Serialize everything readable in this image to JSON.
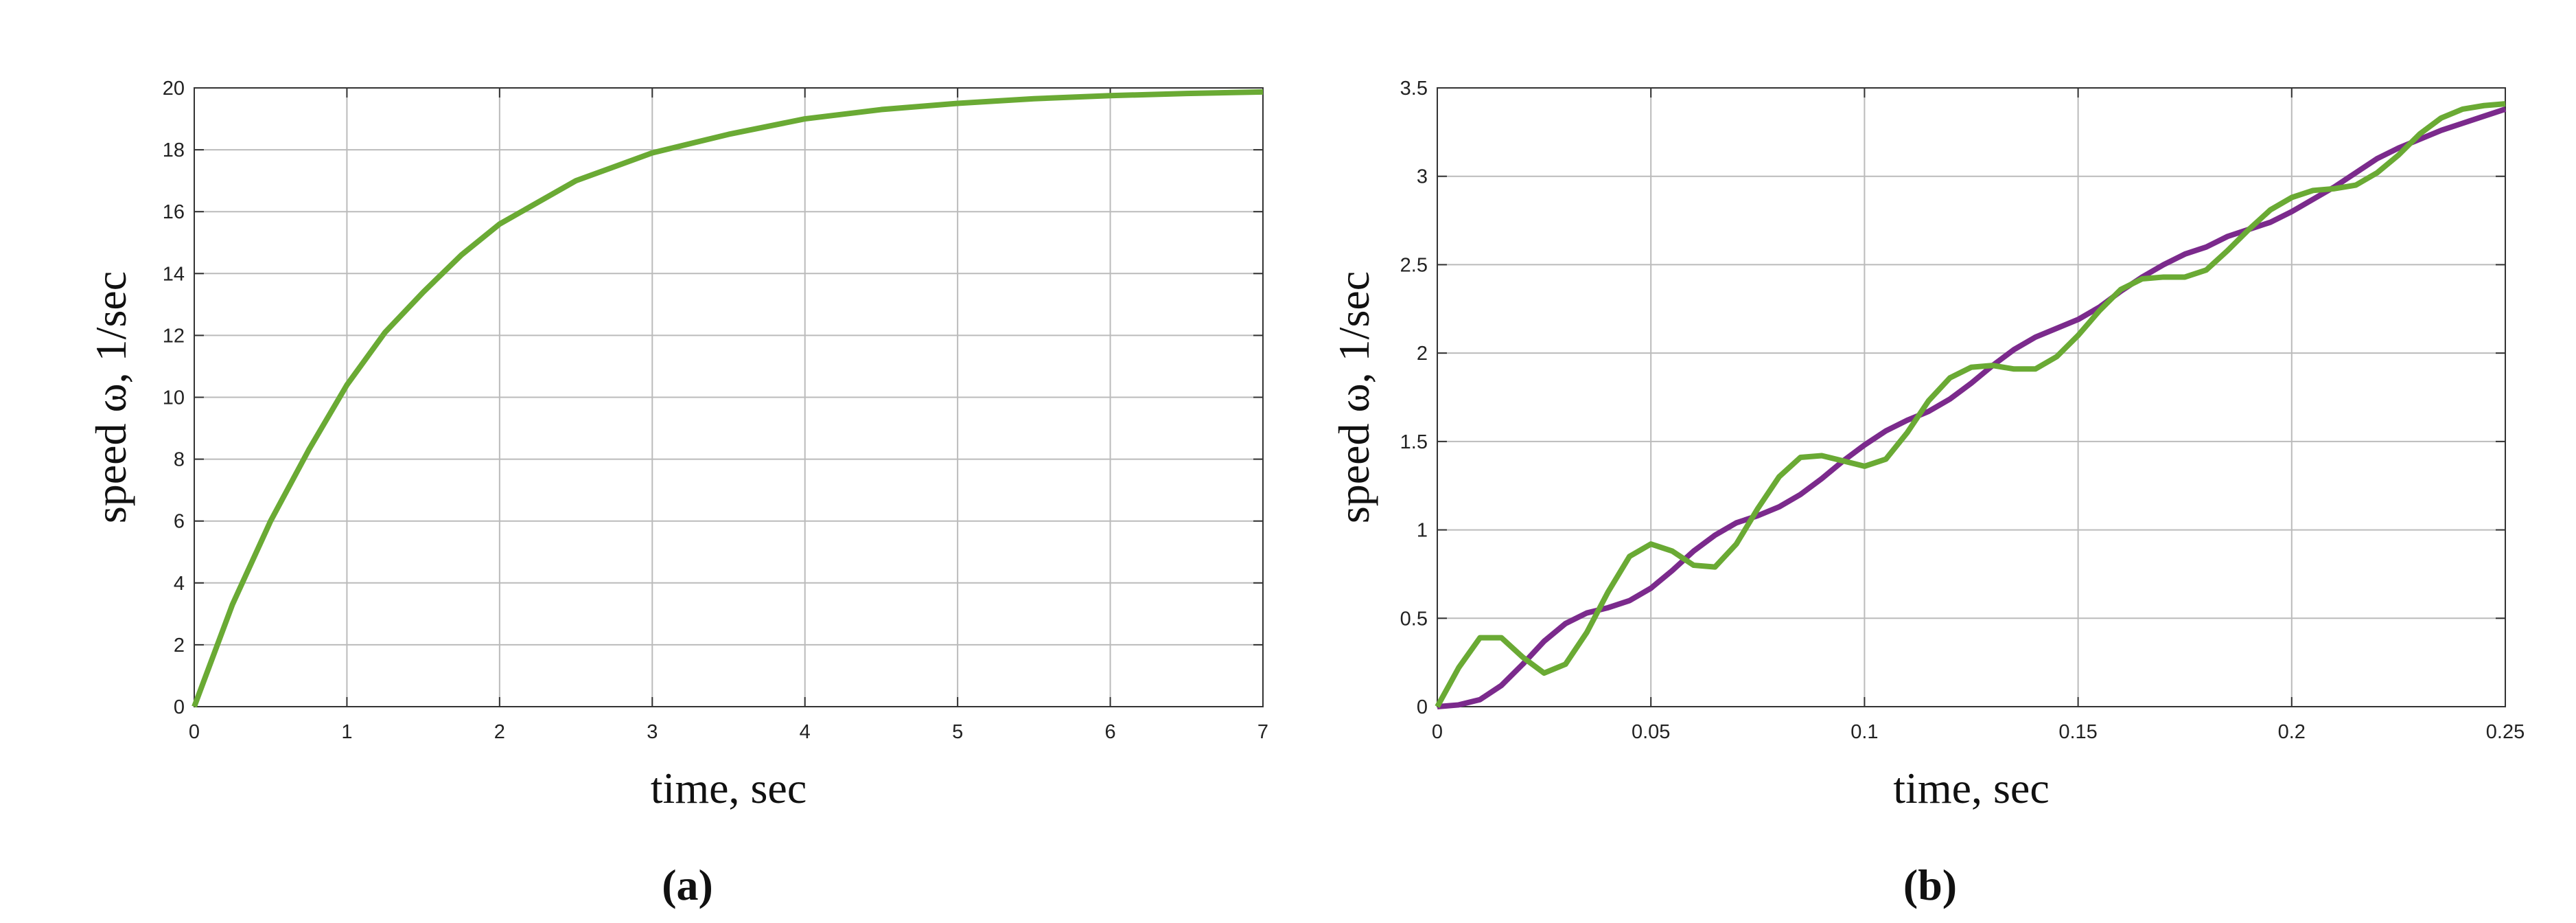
{
  "chart_data": [
    {
      "type": "line",
      "xlabel": "time, sec",
      "ylabel": "speed ω, 1/sec",
      "panel": "(a)",
      "x": [
        0,
        0.25,
        0.5,
        0.75,
        1,
        1.25,
        1.5,
        1.75,
        2,
        2.5,
        3,
        3.5,
        4,
        4.5,
        5,
        5.5,
        6,
        6.5,
        7
      ],
      "series": [
        {
          "color": "#6aaa34",
          "values": [
            0,
            3.3,
            6.0,
            8.3,
            10.4,
            12.1,
            13.4,
            14.6,
            15.6,
            17.0,
            17.9,
            18.5,
            19.0,
            19.3,
            19.5,
            19.65,
            19.75,
            19.82,
            19.87
          ]
        }
      ],
      "xlim": [
        0,
        7
      ],
      "ylim": [
        0,
        20
      ],
      "xticks": [
        0,
        1,
        2,
        3,
        4,
        5,
        6,
        7
      ],
      "yticks": [
        0,
        2,
        4,
        6,
        8,
        10,
        12,
        14,
        16,
        18,
        20
      ],
      "grid": true
    },
    {
      "type": "line",
      "xlabel": "time, sec",
      "ylabel": "speed ω, 1/sec",
      "panel": "(b)",
      "x": [
        0,
        0.005,
        0.01,
        0.015,
        0.02,
        0.025,
        0.03,
        0.035,
        0.04,
        0.045,
        0.05,
        0.055,
        0.06,
        0.065,
        0.07,
        0.075,
        0.08,
        0.085,
        0.09,
        0.095,
        0.1,
        0.105,
        0.11,
        0.115,
        0.12,
        0.125,
        0.13,
        0.135,
        0.14,
        0.145,
        0.15,
        0.155,
        0.16,
        0.165,
        0.17,
        0.175,
        0.18,
        0.185,
        0.19,
        0.195,
        0.2,
        0.205,
        0.21,
        0.215,
        0.22,
        0.225,
        0.23,
        0.235,
        0.24,
        0.245,
        0.25
      ],
      "series": [
        {
          "color": "#7b2a8c",
          "values": [
            0,
            0.01,
            0.04,
            0.12,
            0.24,
            0.37,
            0.47,
            0.53,
            0.56,
            0.6,
            0.67,
            0.77,
            0.88,
            0.97,
            1.04,
            1.08,
            1.13,
            1.2,
            1.29,
            1.39,
            1.48,
            1.56,
            1.62,
            1.67,
            1.74,
            1.83,
            1.93,
            2.02,
            2.09,
            2.14,
            2.19,
            2.26,
            2.35,
            2.43,
            2.5,
            2.56,
            2.6,
            2.66,
            2.7,
            2.74,
            2.8,
            2.87,
            2.94,
            3.02,
            3.1,
            3.16,
            3.21,
            3.26,
            3.3,
            3.34,
            3.38
          ]
        },
        {
          "color": "#6aaa34",
          "values": [
            0,
            0.22,
            0.39,
            0.39,
            0.28,
            0.19,
            0.24,
            0.42,
            0.65,
            0.85,
            0.92,
            0.88,
            0.8,
            0.79,
            0.92,
            1.12,
            1.3,
            1.41,
            1.42,
            1.39,
            1.36,
            1.4,
            1.55,
            1.73,
            1.86,
            1.92,
            1.93,
            1.91,
            1.91,
            1.98,
            2.1,
            2.24,
            2.36,
            2.42,
            2.43,
            2.43,
            2.47,
            2.58,
            2.7,
            2.81,
            2.88,
            2.92,
            2.93,
            2.95,
            3.02,
            3.12,
            3.24,
            3.33,
            3.38,
            3.4,
            3.41
          ]
        }
      ],
      "xlim": [
        0,
        0.25
      ],
      "ylim": [
        0,
        3.5
      ],
      "xticks": [
        0,
        0.05,
        0.1,
        0.15,
        0.2,
        0.25
      ],
      "yticks": [
        0,
        0.5,
        1,
        1.5,
        2,
        2.5,
        3,
        3.5
      ],
      "grid": true
    }
  ]
}
